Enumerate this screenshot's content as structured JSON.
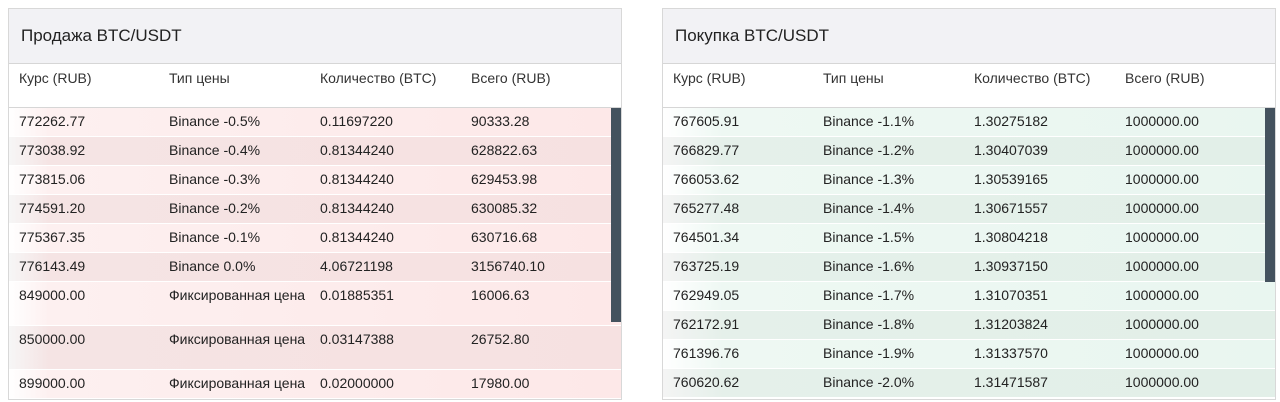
{
  "sell": {
    "title": "Продажа BTC/USDT",
    "headers": [
      "Курс (RUB)",
      "Тип цены",
      "Количество (BTC)",
      "Всего (RUB)"
    ],
    "rows": [
      [
        "772262.77",
        "Binance -0.5%",
        "0.11697220",
        "90333.28"
      ],
      [
        "773038.92",
        "Binance -0.4%",
        "0.81344240",
        "628822.63"
      ],
      [
        "773815.06",
        "Binance -0.3%",
        "0.81344240",
        "629453.98"
      ],
      [
        "774591.20",
        "Binance -0.2%",
        "0.81344240",
        "630085.32"
      ],
      [
        "775367.35",
        "Binance -0.1%",
        "0.81344240",
        "630716.68"
      ],
      [
        "776143.49",
        "Binance 0.0%",
        "4.06721198",
        "3156740.10"
      ],
      [
        "849000.00",
        "Фиксированная цена",
        "0.01885351",
        "16006.63"
      ],
      [
        "850000.00",
        "Фиксированная цена",
        "0.03147388",
        "26752.80"
      ],
      [
        "899000.00",
        "Фиксированная цена",
        "0.02000000",
        "17980.00"
      ]
    ]
  },
  "buy": {
    "title": "Покупка BTC/USDT",
    "headers": [
      "Курс (RUB)",
      "Тип цены",
      "Количество (BTC)",
      "Всего (RUB)"
    ],
    "rows": [
      [
        "767605.91",
        "Binance -1.1%",
        "1.30275182",
        "1000000.00"
      ],
      [
        "766829.77",
        "Binance -1.2%",
        "1.30407039",
        "1000000.00"
      ],
      [
        "766053.62",
        "Binance -1.3%",
        "1.30539165",
        "1000000.00"
      ],
      [
        "765277.48",
        "Binance -1.4%",
        "1.30671557",
        "1000000.00"
      ],
      [
        "764501.34",
        "Binance -1.5%",
        "1.30804218",
        "1000000.00"
      ],
      [
        "763725.19",
        "Binance -1.6%",
        "1.30937150",
        "1000000.00"
      ],
      [
        "762949.05",
        "Binance -1.7%",
        "1.31070351",
        "1000000.00"
      ],
      [
        "762172.91",
        "Binance -1.8%",
        "1.31203824",
        "1000000.00"
      ],
      [
        "761396.76",
        "Binance -1.9%",
        "1.31337570",
        "1000000.00"
      ],
      [
        "760620.62",
        "Binance -2.0%",
        "1.31471587",
        "1000000.00"
      ]
    ]
  }
}
